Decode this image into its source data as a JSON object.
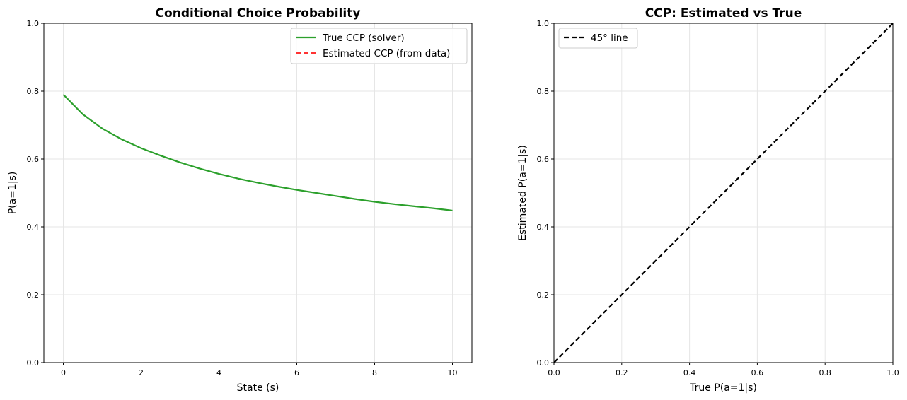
{
  "chart_data": [
    {
      "type": "line",
      "title": "Conditional Choice Probability",
      "xlabel": "State (s)",
      "ylabel": "P(a=1|s)",
      "xlim": [
        -0.5,
        10.5
      ],
      "ylim": [
        0.0,
        1.0
      ],
      "xticks": [
        0,
        2,
        4,
        6,
        8,
        10
      ],
      "yticks": [
        0.0,
        0.2,
        0.4,
        0.6,
        0.8,
        1.0
      ],
      "xtick_labels": [
        "0",
        "2",
        "4",
        "6",
        "8",
        "10"
      ],
      "ytick_labels": [
        "0.0",
        "0.2",
        "0.4",
        "0.6",
        "0.8",
        "1.0"
      ],
      "grid": true,
      "legend_position": "top-right",
      "series": [
        {
          "name": "True CCP (solver)",
          "color": "#2ca02c",
          "style": "solid",
          "x": [
            0,
            0.5,
            1,
            1.5,
            2,
            2.5,
            3,
            3.5,
            4,
            4.5,
            5,
            5.5,
            6,
            6.5,
            7,
            7.5,
            8,
            8.5,
            9,
            9.5,
            10
          ],
          "y": [
            0.79,
            0.732,
            0.69,
            0.658,
            0.632,
            0.61,
            0.59,
            0.572,
            0.556,
            0.542,
            0.53,
            0.519,
            0.509,
            0.5,
            0.491,
            0.482,
            0.474,
            0.467,
            0.461,
            0.455,
            0.448
          ]
        },
        {
          "name": "Estimated CCP (from data)",
          "color": "#ff3333",
          "style": "dashed",
          "x": [],
          "y": []
        }
      ]
    },
    {
      "type": "line",
      "title": "CCP: Estimated vs True",
      "xlabel": "True P(a=1|s)",
      "ylabel": "Estimated P(a=1|s)",
      "xlim": [
        0.0,
        1.0
      ],
      "ylim": [
        0.0,
        1.0
      ],
      "xticks": [
        0.0,
        0.2,
        0.4,
        0.6,
        0.8,
        1.0
      ],
      "yticks": [
        0.0,
        0.2,
        0.4,
        0.6,
        0.8,
        1.0
      ],
      "xtick_labels": [
        "0.0",
        "0.2",
        "0.4",
        "0.6",
        "0.8",
        "1.0"
      ],
      "ytick_labels": [
        "0.0",
        "0.2",
        "0.4",
        "0.6",
        "0.8",
        "1.0"
      ],
      "grid": true,
      "legend_position": "top-left",
      "series": [
        {
          "name": "45° line",
          "color": "#000000",
          "style": "dashed",
          "x": [
            0,
            1
          ],
          "y": [
            0,
            1
          ]
        }
      ]
    }
  ]
}
